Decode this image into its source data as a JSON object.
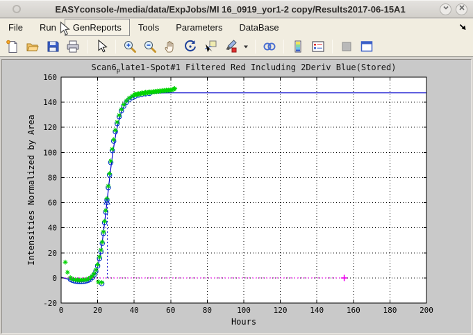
{
  "window": {
    "title": "EASYconsole-/media/data/ExpJobs/MI 16_0919_yor1-2 copy/Results2017-06-15A1",
    "controls": [
      {
        "name": "shade-button",
        "icon": "chevron-down-icon"
      },
      {
        "name": "close-button",
        "icon": "close-icon"
      }
    ]
  },
  "menu": {
    "items": [
      {
        "label": "File",
        "active": false
      },
      {
        "label": "Run",
        "active": false
      },
      {
        "label": "GenReports",
        "active": true
      },
      {
        "label": "Tools",
        "active": false
      },
      {
        "label": "Parameters",
        "active": false
      },
      {
        "label": "DataBase",
        "active": false
      }
    ],
    "overflow_icon": "southeast-arrow-icon"
  },
  "toolbar": {
    "items": [
      "new-document",
      "open-file",
      "save-figure",
      "print-figure",
      "|",
      "edit-plot",
      "|",
      "zoom-in",
      "zoom-out",
      "pan",
      "rotate-3d",
      "data-cursor",
      "brush-data",
      "brush-dropdown",
      "|",
      "link-plots",
      "|",
      "insert-colorbar",
      "insert-legend",
      "|",
      "hide-plot-tools",
      "show-plot-tools"
    ]
  },
  "figure": {
    "title_parts": {
      "prefix": "Scan6",
      "subscript": "p",
      "rest": "late1-Spot#1 Filtered Red Including 2Deriv Blue(Stored)"
    }
  },
  "chart_data": {
    "type": "line",
    "title": "Scan6_plate1-Spot#1 Filtered Red Including 2Deriv Blue(Stored)",
    "xlabel": "Hours",
    "ylabel": "Intensities Normalized by Area",
    "xlim": [
      0,
      200
    ],
    "ylim": [
      -20,
      160
    ],
    "xticks": [
      0,
      20,
      40,
      60,
      80,
      100,
      120,
      140,
      160,
      180,
      200
    ],
    "yticks": [
      -20,
      0,
      20,
      40,
      60,
      80,
      100,
      120,
      140,
      160
    ],
    "grid": "dotted",
    "legend_position": "none",
    "colors": {
      "fit_line": "#0000cc",
      "fit_markers": "#0033cc",
      "data_markers": "#00d400",
      "baseline": "#ee00ee"
    },
    "series": [
      {
        "name": "stored-fit-curve",
        "kind": "line",
        "color": "#0000cc",
        "points": [
          [
            0,
            0.5
          ],
          [
            2,
            -0.3
          ],
          [
            4,
            -1
          ],
          [
            6,
            -1.8
          ],
          [
            8,
            -2.5
          ],
          [
            10,
            -2.9
          ],
          [
            12,
            -2.9
          ],
          [
            14,
            -2.4
          ],
          [
            16,
            -1.2
          ],
          [
            17,
            -0.1
          ],
          [
            18,
            1.5
          ],
          [
            19,
            4.5
          ],
          [
            20,
            9
          ],
          [
            21,
            15
          ],
          [
            22,
            23.5
          ],
          [
            23,
            34
          ],
          [
            24,
            46.5
          ],
          [
            25,
            59.5
          ],
          [
            26,
            72.5
          ],
          [
            27,
            85
          ],
          [
            28,
            96.5
          ],
          [
            29,
            106.5
          ],
          [
            30,
            115
          ],
          [
            31,
            122
          ],
          [
            32,
            127.5
          ],
          [
            33,
            132
          ],
          [
            34,
            135.5
          ],
          [
            35,
            138.2
          ],
          [
            36,
            140.3
          ],
          [
            37,
            141.9
          ],
          [
            38,
            143.1
          ],
          [
            39,
            144
          ],
          [
            40,
            144.7
          ],
          [
            42,
            145.6
          ],
          [
            44,
            146.2
          ],
          [
            46,
            146.6
          ],
          [
            48,
            146.9
          ],
          [
            50,
            147.1
          ],
          [
            55,
            147.4
          ],
          [
            60,
            147.5
          ],
          [
            200,
            147.5
          ]
        ]
      },
      {
        "name": "fit-sample-points",
        "kind": "scatter",
        "marker": "circle",
        "color": "#0033cc",
        "points": [
          [
            5,
            -1
          ],
          [
            6,
            -1.8
          ],
          [
            7,
            -2.3
          ],
          [
            8,
            -2.6
          ],
          [
            9,
            -2.8
          ],
          [
            10,
            -2.9
          ],
          [
            11,
            -2.9
          ],
          [
            12,
            -2.8
          ],
          [
            13,
            -2.6
          ],
          [
            14,
            -2.3
          ],
          [
            15,
            -1.8
          ],
          [
            16,
            -1
          ],
          [
            17,
            0.2
          ],
          [
            18,
            2.2
          ],
          [
            19,
            5.2
          ],
          [
            20,
            9.5
          ],
          [
            21,
            15.5
          ],
          [
            21.8,
            21
          ],
          [
            22.5,
            27.5
          ],
          [
            23.2,
            35.5
          ],
          [
            23.8,
            44
          ],
          [
            24.4,
            52.5
          ],
          [
            25.1,
            62
          ],
          [
            25.8,
            72
          ],
          [
            26.5,
            82
          ],
          [
            27.2,
            92
          ],
          [
            28,
            101.5
          ],
          [
            28.8,
            109
          ],
          [
            29.7,
            116.5
          ],
          [
            30.7,
            123
          ],
          [
            31.8,
            128.5
          ],
          [
            33,
            133.2
          ],
          [
            34.3,
            136.9
          ],
          [
            35.7,
            139.9
          ],
          [
            37.2,
            142
          ],
          [
            38.8,
            143.6
          ],
          [
            40.5,
            144.9
          ],
          [
            42.3,
            145.7
          ],
          [
            44.2,
            146.3
          ],
          [
            46.2,
            146.7
          ],
          [
            48.3,
            147
          ],
          [
            22.3,
            -4.5
          ]
        ]
      },
      {
        "name": "filtered-data-points",
        "kind": "scatter",
        "marker": "asterisk",
        "color": "#00d400",
        "points": [
          [
            2.3,
            12.5
          ],
          [
            3.5,
            4.5
          ],
          [
            20.3,
            -3.3
          ],
          [
            22.3,
            -3.6
          ],
          [
            5,
            0.2
          ],
          [
            6,
            -0.6
          ],
          [
            7,
            -1.1
          ],
          [
            8,
            -1.4
          ],
          [
            9,
            -1.6
          ],
          [
            10,
            -1.7
          ],
          [
            11,
            -1.7
          ],
          [
            12,
            -1.6
          ],
          [
            13,
            -1.4
          ],
          [
            14,
            -1.1
          ],
          [
            15,
            -0.6
          ],
          [
            16,
            0.2
          ],
          [
            17,
            1.4
          ],
          [
            18,
            3.4
          ],
          [
            19,
            6.4
          ],
          [
            20,
            10.7
          ],
          [
            21,
            16.7
          ],
          [
            21.8,
            22.2
          ],
          [
            22.5,
            28.7
          ],
          [
            23.2,
            36.7
          ],
          [
            23.8,
            45.2
          ],
          [
            24.4,
            53.7
          ],
          [
            25.1,
            63.2
          ],
          [
            25.8,
            73.2
          ],
          [
            26.5,
            83.2
          ],
          [
            27.2,
            93.2
          ],
          [
            28,
            102.7
          ],
          [
            28.8,
            110.2
          ],
          [
            29.7,
            117.7
          ],
          [
            30.7,
            124.2
          ],
          [
            31.8,
            129.7
          ],
          [
            33,
            134.4
          ],
          [
            34.3,
            138.1
          ],
          [
            35.7,
            141.1
          ],
          [
            37.2,
            143.2
          ],
          [
            38.8,
            144.8
          ],
          [
            40.5,
            146.1
          ],
          [
            42.3,
            146.9
          ],
          [
            44.2,
            147.5
          ],
          [
            46.2,
            147.9
          ],
          [
            48.3,
            148.2
          ],
          [
            40.2,
            145.9
          ],
          [
            40.8,
            146.4
          ],
          [
            41.4,
            146.1
          ],
          [
            42,
            146.7
          ],
          [
            42.6,
            146.4
          ],
          [
            43.2,
            147
          ],
          [
            43.8,
            146.7
          ],
          [
            44.4,
            147.3
          ],
          [
            45,
            147
          ],
          [
            45.6,
            147.6
          ],
          [
            46.2,
            147.2
          ],
          [
            46.8,
            147.8
          ],
          [
            47.4,
            147.5
          ],
          [
            48,
            148.1
          ],
          [
            48.6,
            147.7
          ],
          [
            49.2,
            148.3
          ],
          [
            49.8,
            148
          ],
          [
            50.4,
            148.5
          ],
          [
            51,
            148.2
          ],
          [
            51.6,
            148.7
          ],
          [
            52.2,
            148.4
          ],
          [
            52.8,
            148.9
          ],
          [
            53.4,
            148.6
          ],
          [
            54,
            149.1
          ],
          [
            54.6,
            148.8
          ],
          [
            55.2,
            149.3
          ],
          [
            55.8,
            149
          ],
          [
            56.4,
            149.4
          ],
          [
            57,
            149.2
          ],
          [
            57.6,
            149.6
          ],
          [
            58.2,
            149.3
          ],
          [
            58.8,
            149.7
          ],
          [
            59.4,
            149.5
          ],
          [
            60,
            149.9
          ],
          [
            60.6,
            149.6
          ],
          [
            61.2,
            150.2
          ],
          [
            61.8,
            150.6
          ],
          [
            62.2,
            150.9
          ]
        ]
      },
      {
        "name": "baseline",
        "kind": "dotted-line",
        "color": "#ee00ee",
        "points": [
          [
            0,
            0
          ],
          [
            155,
            0
          ]
        ]
      },
      {
        "name": "baseline-end-marker",
        "kind": "scatter",
        "marker": "plus",
        "color": "#ee00ee",
        "points": [
          [
            155,
            0
          ]
        ]
      },
      {
        "name": "second-deriv-marker-line",
        "kind": "dotted-line",
        "color": "#0000cc",
        "points": [
          [
            25.3,
            0
          ],
          [
            25.3,
            59
          ]
        ]
      },
      {
        "name": "second-deriv-peak-marker",
        "kind": "scatter",
        "marker": "triangle-up",
        "color": "#0033cc",
        "points": [
          [
            25.1,
            60.5
          ]
        ]
      }
    ]
  }
}
